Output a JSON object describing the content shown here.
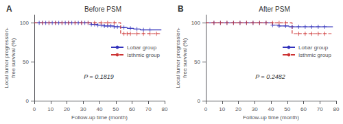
{
  "chart_data": [
    {
      "type": "step",
      "title": "Before PSM",
      "panel_label": "A",
      "annotation": "P = 0.1819",
      "xlabel": "Follow-up time (month)",
      "ylabel": "Local tumor progression-\nfree survival (%)",
      "xlim": [
        0,
        80
      ],
      "xticks": [
        0,
        10,
        20,
        30,
        40,
        50,
        60,
        70,
        80
      ],
      "ylim": [
        0,
        110
      ],
      "yticks": [
        0,
        50,
        100
      ],
      "grid": false,
      "legend": "upper right",
      "series": [
        {
          "name": "Lobar group",
          "color": "#3333bb",
          "line_style": "solid",
          "marker": "+",
          "x": [
            0,
            1,
            2,
            3,
            5,
            7,
            9,
            11,
            13,
            15,
            17,
            19,
            21,
            23,
            25,
            27,
            29,
            31,
            33,
            35,
            37,
            39,
            41,
            43,
            45,
            47,
            49,
            51,
            53,
            55,
            57,
            59,
            61,
            63,
            65,
            67,
            69,
            71,
            73,
            75,
            78
          ],
          "values": [
            100,
            100,
            100,
            100,
            100,
            100,
            100,
            100,
            100,
            100,
            100,
            100,
            100,
            100,
            100,
            100,
            100,
            100,
            100,
            98,
            98,
            97,
            97,
            96,
            96,
            96,
            95,
            95,
            94,
            94,
            93,
            93,
            92,
            92,
            91,
            91,
            91,
            91,
            91,
            91,
            91
          ],
          "censor_x": [
            3,
            5,
            7,
            9,
            11,
            13,
            15,
            17,
            19,
            21,
            23,
            25,
            27,
            29,
            31,
            33,
            35,
            37,
            39,
            41,
            43,
            45,
            47,
            49,
            51,
            55,
            59,
            63,
            67,
            71
          ],
          "censor_values": [
            100,
            100,
            100,
            100,
            100,
            100,
            100,
            100,
            100,
            100,
            100,
            100,
            100,
            100,
            100,
            100,
            98,
            98,
            97,
            97,
            96,
            96,
            96,
            95,
            95,
            94,
            93,
            92,
            91,
            91
          ]
        },
        {
          "name": "Isthmic group",
          "color": "#cc3333",
          "line_style": "dashed",
          "marker": "+",
          "x": [
            0,
            1,
            3,
            5,
            7,
            9,
            11,
            13,
            15,
            17,
            19,
            21,
            23,
            25,
            27,
            29,
            31,
            33,
            35,
            37,
            39,
            41,
            43,
            45,
            47,
            49,
            51,
            53,
            55,
            57,
            59,
            61,
            63,
            65,
            67,
            69,
            71,
            73,
            75,
            78
          ],
          "values": [
            100,
            100,
            100,
            100,
            100,
            100,
            100,
            100,
            100,
            100,
            100,
            100,
            100,
            100,
            100,
            100,
            100,
            100,
            100,
            100,
            100,
            100,
            100,
            100,
            100,
            100,
            100,
            86,
            86,
            86,
            86,
            86,
            86,
            86,
            86,
            86,
            86,
            86,
            86,
            86
          ],
          "censor_x": [
            5,
            9,
            13,
            17,
            21,
            25,
            29,
            33,
            37,
            41,
            45,
            49,
            55,
            57,
            59,
            63,
            67,
            71,
            75
          ],
          "censor_values": [
            100,
            100,
            100,
            100,
            100,
            100,
            100,
            100,
            100,
            100,
            100,
            100,
            86,
            86,
            86,
            86,
            86,
            86,
            86
          ]
        }
      ]
    },
    {
      "type": "step",
      "title": "After PSM",
      "panel_label": "B",
      "annotation": "P = 0.2482",
      "xlabel": "Follow-up time (month)",
      "ylabel": "Local tumor progression-\nfree survival (%)",
      "xlim": [
        0,
        80
      ],
      "xticks": [
        0,
        10,
        20,
        30,
        40,
        50,
        60,
        70,
        80
      ],
      "ylim": [
        0,
        110
      ],
      "yticks": [
        0,
        50,
        100
      ],
      "grid": false,
      "legend": "upper right",
      "series": [
        {
          "name": "Lobar group",
          "color": "#3333bb",
          "line_style": "solid",
          "marker": "+",
          "x": [
            0,
            1,
            3,
            5,
            7,
            9,
            11,
            13,
            15,
            17,
            19,
            21,
            23,
            25,
            27,
            29,
            31,
            33,
            35,
            37,
            39,
            41,
            43,
            45,
            47,
            49,
            51,
            53,
            55,
            57,
            59,
            61,
            63,
            65,
            67,
            69,
            71,
            73,
            75,
            78
          ],
          "values": [
            100,
            100,
            100,
            100,
            100,
            100,
            100,
            100,
            100,
            100,
            100,
            100,
            100,
            100,
            100,
            100,
            100,
            100,
            100,
            100,
            100,
            97,
            97,
            96,
            96,
            96,
            95,
            95,
            95,
            95,
            95,
            95,
            95,
            95,
            95,
            95,
            95,
            95,
            95,
            95
          ],
          "censor_x": [
            5,
            9,
            13,
            17,
            21,
            25,
            29,
            33,
            37,
            41,
            45,
            49,
            53,
            57,
            61,
            65,
            69,
            73
          ],
          "censor_values": [
            100,
            100,
            100,
            100,
            100,
            100,
            100,
            100,
            100,
            97,
            96,
            96,
            95,
            95,
            95,
            95,
            95,
            95
          ]
        },
        {
          "name": "Isthmic group",
          "color": "#cc3333",
          "line_style": "dashed",
          "marker": "+",
          "x": [
            0,
            1,
            3,
            5,
            7,
            9,
            11,
            13,
            15,
            17,
            19,
            21,
            23,
            25,
            27,
            29,
            31,
            33,
            35,
            37,
            39,
            41,
            43,
            45,
            47,
            49,
            51,
            53,
            55,
            57,
            59,
            61,
            63,
            65,
            67,
            69,
            71,
            73,
            75,
            78
          ],
          "values": [
            100,
            100,
            100,
            100,
            100,
            100,
            100,
            100,
            100,
            100,
            100,
            100,
            100,
            100,
            100,
            100,
            100,
            100,
            100,
            100,
            100,
            100,
            100,
            100,
            100,
            100,
            100,
            86,
            86,
            86,
            86,
            86,
            86,
            86,
            86,
            86,
            86,
            86,
            86,
            86
          ],
          "censor_x": [
            5,
            9,
            13,
            17,
            21,
            25,
            29,
            33,
            37,
            41,
            45,
            49,
            57,
            61,
            65,
            69,
            73
          ],
          "censor_values": [
            100,
            100,
            100,
            100,
            100,
            100,
            100,
            100,
            100,
            100,
            100,
            100,
            86,
            86,
            86,
            86,
            86
          ]
        }
      ]
    }
  ]
}
